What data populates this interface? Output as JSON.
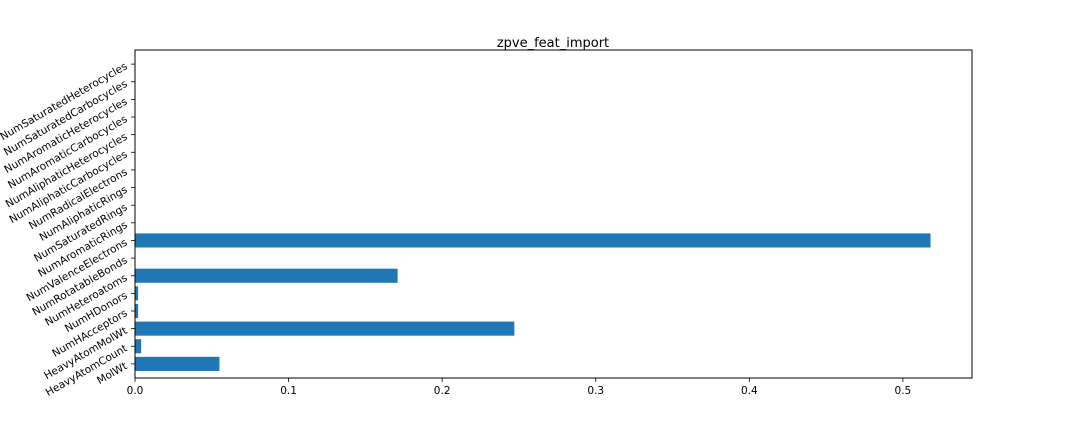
{
  "chart_data": {
    "type": "bar",
    "orientation": "horizontal",
    "title": "zpve_feat_import",
    "xlabel": "",
    "ylabel": "",
    "xlim": [
      0,
      0.545
    ],
    "grid": false,
    "bar_color": "#1f77b4",
    "xticks": [
      {
        "value": 0.0,
        "label": "0.0"
      },
      {
        "value": 0.1,
        "label": "0.1"
      },
      {
        "value": 0.2,
        "label": "0.2"
      },
      {
        "value": 0.3,
        "label": "0.3"
      },
      {
        "value": 0.4,
        "label": "0.4"
      },
      {
        "value": 0.5,
        "label": "0.5"
      }
    ],
    "categories": [
      "MolWt",
      "HeavyAtomCount",
      "HeavyAtomMolWt",
      "NumHAcceptors",
      "NumHDonors",
      "NumHeteroatoms",
      "NumRotatableBonds",
      "NumValenceElectrons",
      "NumAromaticRings",
      "NumSaturatedRings",
      "NumAliphaticRings",
      "NumRadicalElectrons",
      "NumAliphaticCarbocycles",
      "NumAliphaticHeterocycles",
      "NumAromaticCarbocycles",
      "NumAromaticHeterocycles",
      "NumSaturatedCarbocycles",
      "NumSaturatedHeterocycles"
    ],
    "values": [
      0.055,
      0.004,
      0.247,
      0.002,
      0.002,
      0.171,
      0.0,
      0.518,
      0.0,
      0.0,
      0.0,
      0.0,
      0.0,
      0.0,
      0.0,
      0.0,
      0.0,
      0.0
    ]
  }
}
